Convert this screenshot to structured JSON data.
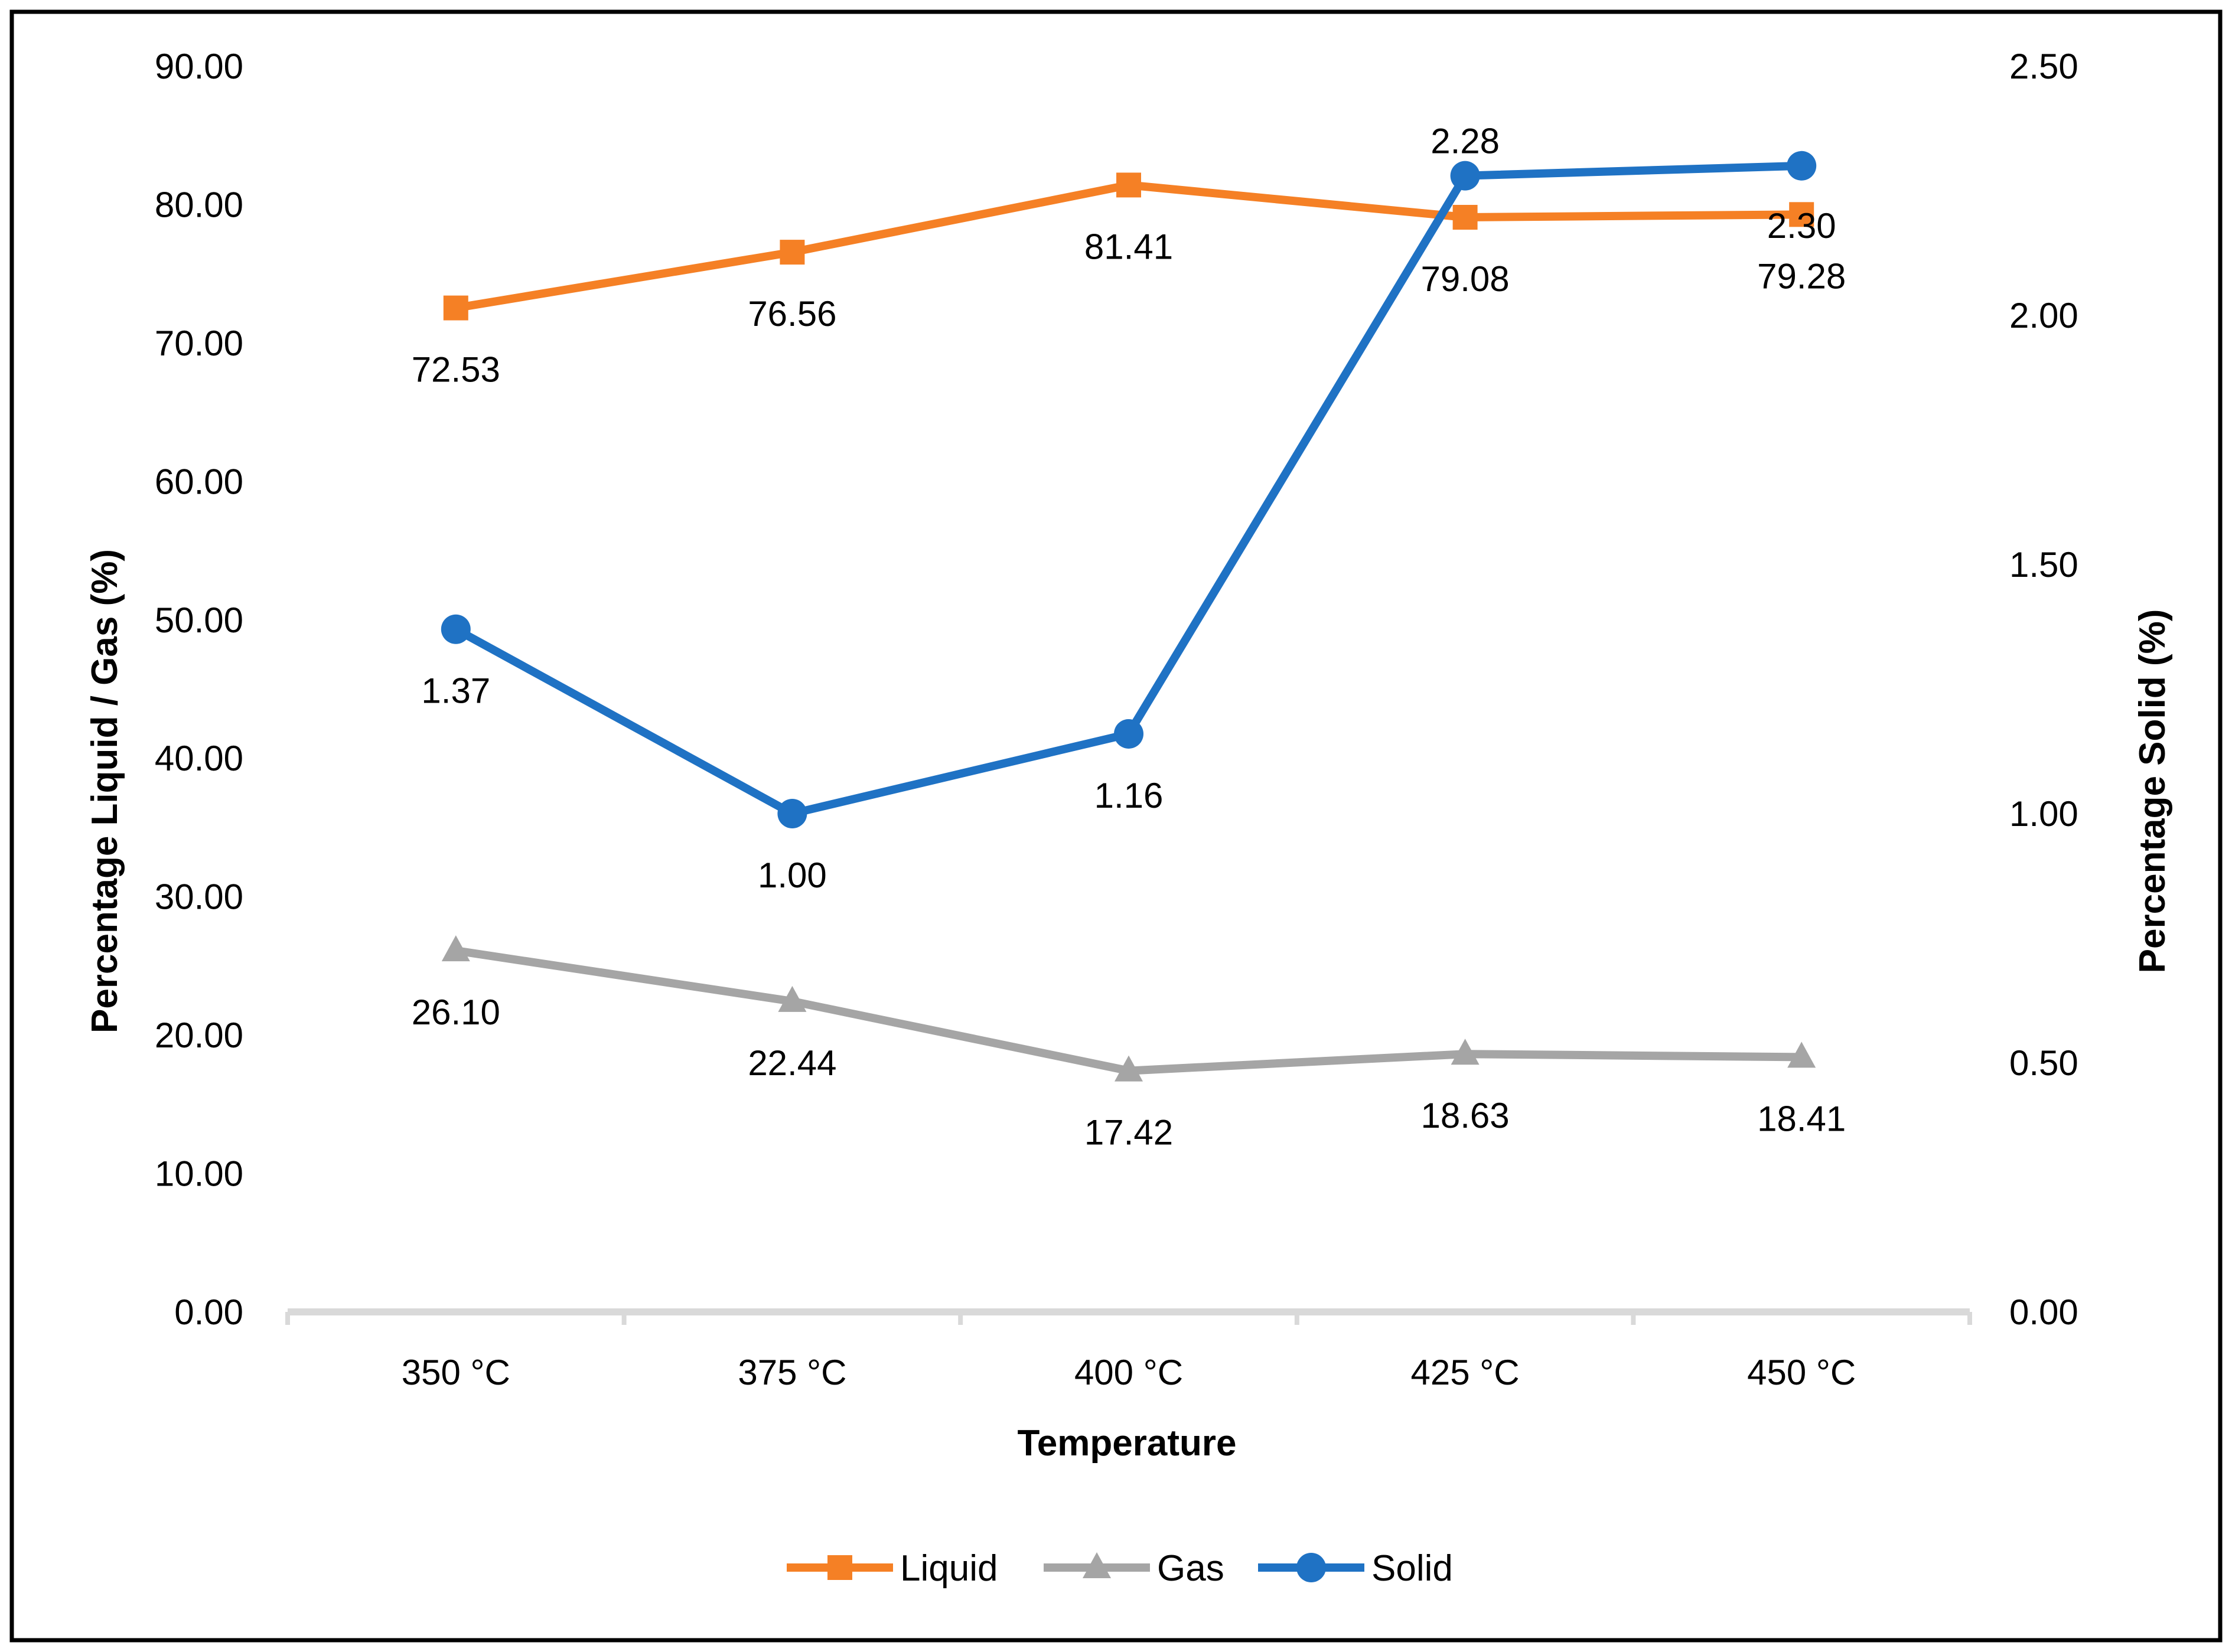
{
  "chart_data": {
    "type": "line",
    "title": "",
    "categories": [
      "350 °C",
      "375 °C",
      "400 °C",
      "425 °C",
      "450 °C"
    ],
    "xlabel": "Temperature",
    "ylabel": "Percentage Liquid / Gas (%)",
    "y2label": "Percentage Solid (%)",
    "ylim": [
      0,
      90
    ],
    "y2lim": [
      0,
      2.5
    ],
    "yticks": [
      "0.00",
      "10.00",
      "20.00",
      "30.00",
      "40.00",
      "50.00",
      "60.00",
      "70.00",
      "80.00",
      "90.00"
    ],
    "y2ticks": [
      "0.00",
      "0.50",
      "1.00",
      "1.50",
      "2.00",
      "2.50"
    ],
    "grid": false,
    "legend_position": "bottom",
    "series": [
      {
        "name": "Liquid",
        "axis": "left",
        "color": "#F58025",
        "marker": "square",
        "values": [
          72.53,
          76.56,
          81.41,
          79.08,
          79.28
        ],
        "labels": [
          "72.53",
          "76.56",
          "81.41",
          "79.08",
          "79.28"
        ]
      },
      {
        "name": "Gas",
        "axis": "left",
        "color": "#A5A5A5",
        "marker": "triangle",
        "values": [
          26.1,
          22.44,
          17.42,
          18.63,
          18.41
        ],
        "labels": [
          "26.10",
          "22.44",
          "17.42",
          "18.63",
          "18.41"
        ]
      },
      {
        "name": "Solid",
        "axis": "right",
        "color": "#1F72C4",
        "marker": "circle",
        "values": [
          1.37,
          1.0,
          1.16,
          2.28,
          2.3
        ],
        "labels": [
          "1.37",
          "1.00",
          "1.16",
          "2.28",
          "2.30"
        ]
      }
    ],
    "axis_color": "#D9D9D9"
  }
}
